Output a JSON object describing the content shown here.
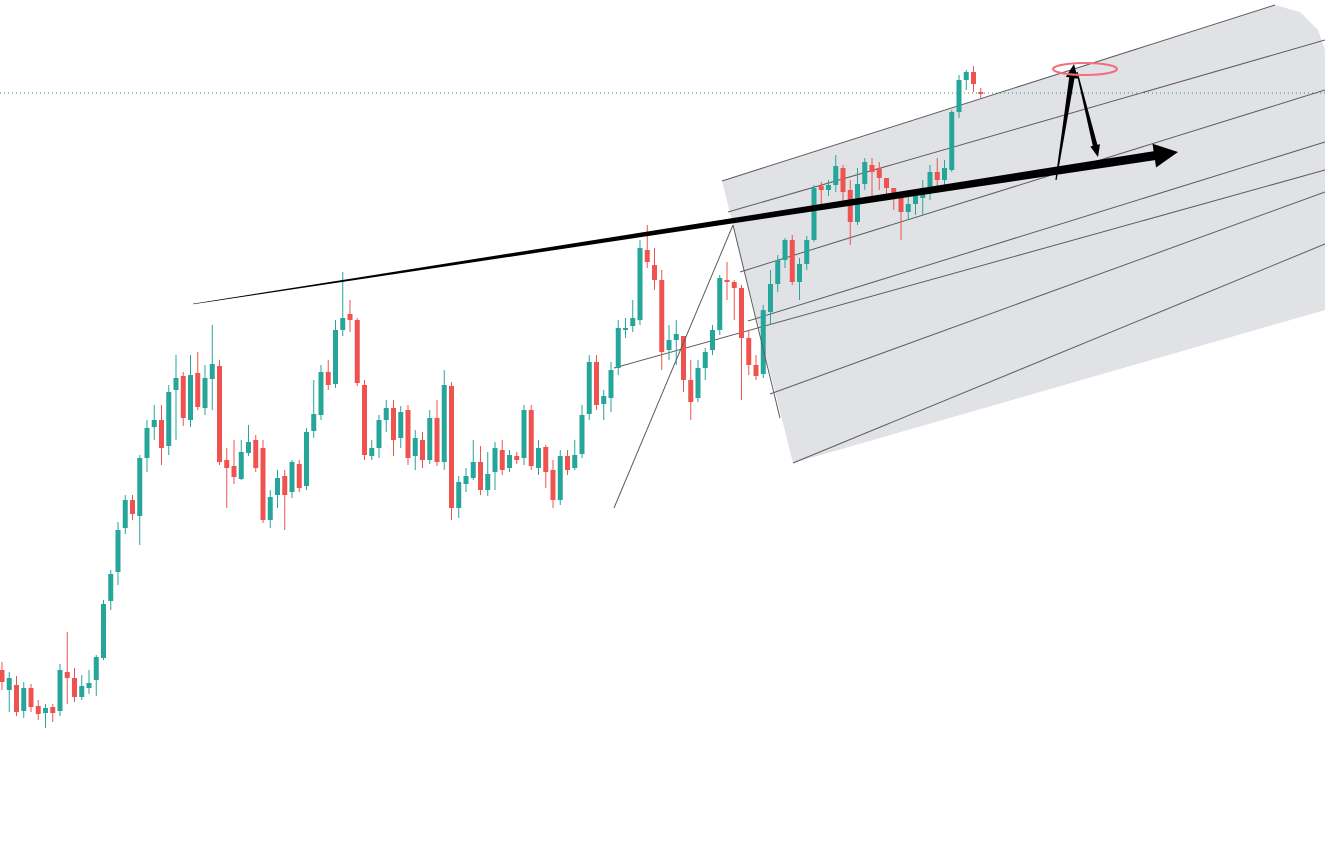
{
  "colors": {
    "up": "#26a69a",
    "down": "#ef5350",
    "channel_fill": "#e1e2e5",
    "channel_line": "#5c5c5c",
    "arrow": "#000000",
    "ellipse": "#f06f7c",
    "price_line": "#2e8b80"
  },
  "chart_data": {
    "type": "candlestick",
    "title": "",
    "xlabel": "",
    "ylabel": "",
    "x": {
      "min": 0,
      "max": 166
    },
    "ylim": [
      0,
      850
    ],
    "grid": false,
    "legend": "none",
    "last_price": 93,
    "candles": [
      [
        670,
        682,
        662,
        690
      ],
      [
        690,
        678,
        672,
        712
      ],
      [
        685,
        712,
        676,
        716
      ],
      [
        711,
        688,
        682,
        718
      ],
      [
        688,
        707,
        684,
        712
      ],
      [
        706,
        714,
        700,
        720
      ],
      [
        713,
        708,
        704,
        728
      ],
      [
        707,
        713,
        704,
        722
      ],
      [
        711,
        670,
        664,
        716
      ],
      [
        672,
        678,
        632,
        704
      ],
      [
        678,
        697,
        668,
        702
      ],
      [
        697,
        686,
        675,
        700
      ],
      [
        688,
        683,
        670,
        694
      ],
      [
        680,
        657,
        655,
        696
      ],
      [
        658,
        604,
        600,
        660
      ],
      [
        601,
        574,
        570,
        610
      ],
      [
        572,
        530,
        522,
        585
      ],
      [
        528,
        500,
        495,
        534
      ],
      [
        500,
        514,
        495,
        520
      ],
      [
        516,
        458,
        455,
        545
      ],
      [
        458,
        428,
        420,
        472
      ],
      [
        427,
        420,
        405,
        440
      ],
      [
        420,
        448,
        405,
        465
      ],
      [
        446,
        392,
        385,
        455
      ],
      [
        390,
        378,
        355,
        440
      ],
      [
        376,
        418,
        372,
        426
      ],
      [
        420,
        375,
        355,
        427
      ],
      [
        373,
        407,
        352,
        410
      ],
      [
        408,
        378,
        365,
        415
      ],
      [
        379,
        364,
        325,
        410
      ],
      [
        366,
        462,
        360,
        465
      ],
      [
        460,
        468,
        448,
        508
      ],
      [
        466,
        477,
        440,
        484
      ],
      [
        479,
        452,
        440,
        480
      ],
      [
        453,
        442,
        425,
        456
      ],
      [
        440,
        468,
        435,
        472
      ],
      [
        448,
        520,
        440,
        523
      ],
      [
        520,
        497,
        490,
        528
      ],
      [
        495,
        478,
        470,
        508
      ],
      [
        476,
        495,
        470,
        530
      ],
      [
        492,
        462,
        460,
        498
      ],
      [
        464,
        488,
        460,
        492
      ],
      [
        486,
        432,
        428,
        490
      ],
      [
        431,
        414,
        380,
        438
      ],
      [
        415,
        372,
        365,
        420
      ],
      [
        372,
        385,
        360,
        390
      ],
      [
        384,
        330,
        320,
        388
      ],
      [
        330,
        318,
        272,
        336
      ],
      [
        314,
        320,
        300,
        332
      ],
      [
        320,
        383,
        318,
        386
      ],
      [
        385,
        455,
        380,
        460
      ],
      [
        456,
        448,
        440,
        460
      ],
      [
        448,
        420,
        415,
        458
      ],
      [
        420,
        408,
        400,
        432
      ],
      [
        408,
        440,
        400,
        456
      ],
      [
        438,
        412,
        406,
        448
      ],
      [
        410,
        458,
        405,
        465
      ],
      [
        456,
        438,
        430,
        470
      ],
      [
        440,
        460,
        432,
        468
      ],
      [
        460,
        418,
        410,
        464
      ],
      [
        418,
        462,
        400,
        466
      ],
      [
        462,
        385,
        370,
        470
      ],
      [
        386,
        508,
        382,
        520
      ],
      [
        508,
        482,
        476,
        518
      ],
      [
        484,
        476,
        468,
        492
      ],
      [
        478,
        462,
        440,
        480
      ],
      [
        462,
        490,
        446,
        495
      ],
      [
        490,
        474,
        452,
        496
      ],
      [
        472,
        448,
        442,
        490
      ],
      [
        450,
        470,
        440,
        475
      ],
      [
        468,
        455,
        450,
        472
      ],
      [
        456,
        460,
        452,
        464
      ],
      [
        458,
        410,
        405,
        465
      ],
      [
        410,
        466,
        405,
        470
      ],
      [
        468,
        448,
        440,
        475
      ],
      [
        447,
        472,
        445,
        488
      ],
      [
        470,
        500,
        460,
        508
      ],
      [
        500,
        456,
        450,
        505
      ],
      [
        456,
        470,
        450,
        475
      ],
      [
        468,
        455,
        440,
        470
      ],
      [
        454,
        415,
        405,
        458
      ],
      [
        414,
        362,
        355,
        420
      ],
      [
        362,
        405,
        355,
        410
      ],
      [
        404,
        396,
        390,
        420
      ],
      [
        398,
        370,
        362,
        412
      ],
      [
        368,
        328,
        320,
        375
      ],
      [
        330,
        328,
        318,
        338
      ],
      [
        326,
        318,
        300,
        332
      ],
      [
        320,
        248,
        240,
        325
      ],
      [
        250,
        262,
        225,
        268
      ],
      [
        265,
        280,
        248,
        290
      ],
      [
        280,
        352,
        270,
        370
      ],
      [
        350,
        340,
        325,
        360
      ],
      [
        340,
        334,
        320,
        365
      ],
      [
        336,
        380,
        340,
        392
      ],
      [
        380,
        402,
        360,
        420
      ],
      [
        398,
        368,
        360,
        402
      ],
      [
        368,
        352,
        348,
        380
      ],
      [
        350,
        330,
        325,
        355
      ],
      [
        330,
        278,
        275,
        335
      ],
      [
        280,
        282,
        262,
        300
      ],
      [
        282,
        288,
        280,
        320
      ],
      [
        288,
        338,
        285,
        400
      ],
      [
        338,
        365,
        330,
        375
      ],
      [
        365,
        376,
        355,
        380
      ],
      [
        374,
        310,
        305,
        378
      ],
      [
        312,
        284,
        270,
        325
      ],
      [
        284,
        260,
        255,
        292
      ],
      [
        260,
        240,
        238,
        268
      ],
      [
        240,
        282,
        235,
        285
      ],
      [
        282,
        264,
        258,
        300
      ],
      [
        264,
        240,
        236,
        270
      ],
      [
        240,
        188,
        185,
        242
      ],
      [
        186,
        190,
        182,
        210
      ],
      [
        190,
        185,
        180,
        196
      ],
      [
        185,
        166,
        155,
        192
      ],
      [
        168,
        192,
        165,
        205
      ],
      [
        190,
        222,
        180,
        245
      ],
      [
        222,
        184,
        168,
        225
      ],
      [
        184,
        162,
        158,
        190
      ],
      [
        165,
        172,
        158,
        198
      ],
      [
        168,
        178,
        162,
        190
      ],
      [
        178,
        188,
        180,
        198
      ],
      [
        188,
        194,
        190,
        210
      ],
      [
        192,
        212,
        200,
        240
      ],
      [
        212,
        204,
        196,
        220
      ],
      [
        204,
        196,
        190,
        215
      ],
      [
        198,
        188,
        180,
        215
      ],
      [
        188,
        172,
        165,
        200
      ],
      [
        172,
        180,
        158,
        192
      ],
      [
        180,
        168,
        160,
        186
      ],
      [
        170,
        112,
        110,
        172
      ],
      [
        112,
        80,
        75,
        118
      ],
      [
        80,
        72,
        70,
        90
      ],
      [
        72,
        84,
        66,
        92
      ],
      [
        92,
        94,
        88,
        98
      ]
    ],
    "annotations": {
      "channel_lines": [
        [
          [
            722,
            181
          ],
          [
            1275,
            5
          ]
        ],
        [
          [
            728,
            212
          ],
          [
            1325,
            40
          ]
        ],
        [
          [
            740,
            272
          ],
          [
            1325,
            90
          ]
        ],
        [
          [
            748,
            321
          ],
          [
            1325,
            142
          ]
        ],
        [
          [
            770,
            394
          ],
          [
            1325,
            192
          ]
        ],
        [
          [
            793,
            463
          ],
          [
            1325,
            244
          ]
        ],
        [
          [
            614,
            368
          ],
          [
            1325,
            170
          ]
        ]
      ],
      "channel_polygon": [
        [
          722,
          181
        ],
        [
          1275,
          5
        ],
        [
          1300,
          12
        ],
        [
          1318,
          30
        ],
        [
          1325,
          50
        ],
        [
          1325,
          310
        ],
        [
          793,
          463
        ]
      ],
      "trend_lines": [
        [
          [
            614,
            508
          ],
          [
            733,
            225
          ]
        ],
        [
          [
            733,
            225
          ],
          [
            780,
            418
          ]
        ]
      ],
      "arrow_main": {
        "from": [
          193,
          304
        ],
        "to": [
          1178,
          152
        ]
      },
      "arrow_up": {
        "from": [
          1056,
          180
        ],
        "to": [
          1074,
          64
        ]
      },
      "arrow_down": {
        "from": [
          1077,
          72
        ],
        "to": [
          1098,
          157
        ]
      },
      "ellipse": {
        "cx": 1085,
        "cy": 69,
        "rx": 32,
        "ry": 6
      }
    }
  }
}
